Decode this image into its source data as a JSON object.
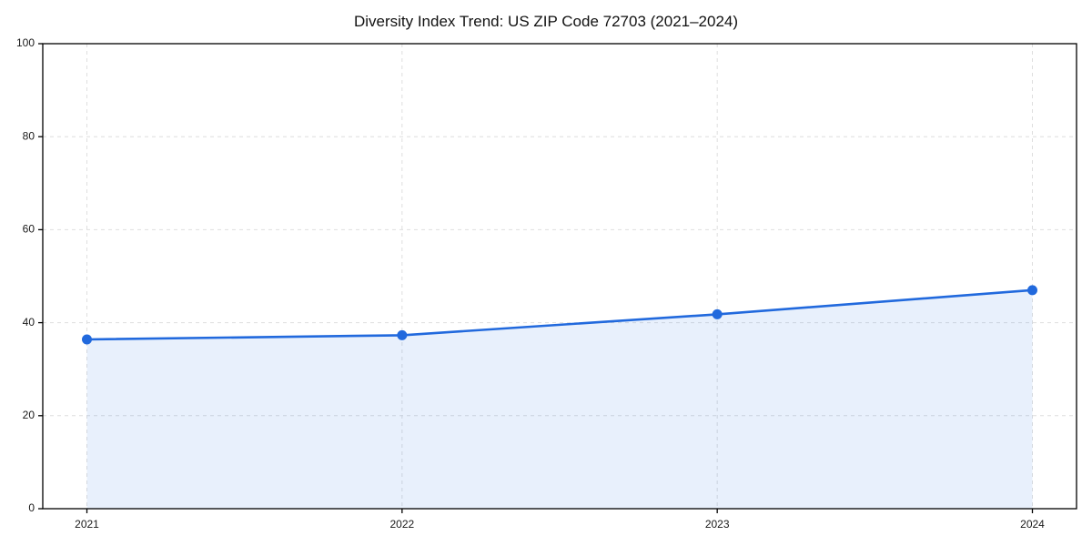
{
  "chart_data": {
    "type": "line",
    "title": "Diversity Index Trend: US ZIP Code 72703 (2021–2024)",
    "categories": [
      "2021",
      "2022",
      "2023",
      "2024"
    ],
    "series": [
      {
        "name": "Diversity Index",
        "values": [
          36.4,
          37.3,
          41.8,
          47.0
        ]
      }
    ],
    "xlabel": "",
    "ylabel": "",
    "ylim": [
      0,
      100
    ],
    "yticks": [
      0,
      20,
      40,
      60,
      80,
      100
    ],
    "grid": true,
    "grid_style": "dashed",
    "grid_color": "#dedede",
    "legend": false,
    "line_color": "#2169dd",
    "marker": "circle",
    "marker_color": "#2169dd",
    "area_fill": true,
    "fill_color": "#2169dd",
    "fill_opacity": 0.1,
    "spine_color": "#000000",
    "background_color": "#ffffff"
  }
}
